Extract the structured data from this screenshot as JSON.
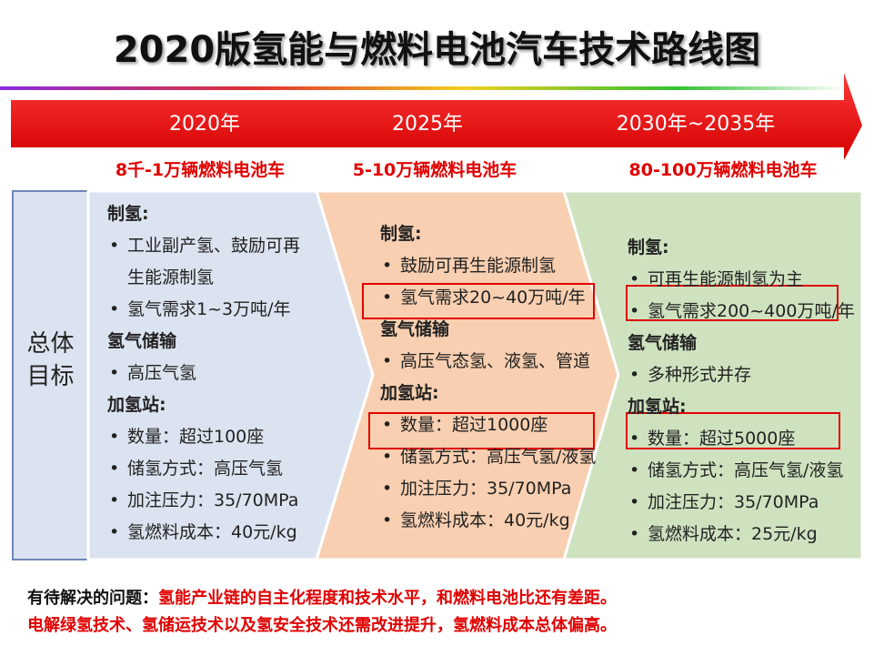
{
  "title": "2020版氢能与燃料电池汽车技术路线图",
  "timeline": [
    "2020年",
    "2025年",
    "2030年~2035年"
  ],
  "targets": [
    "8千-1万辆燃料电池车",
    "5-10万辆燃料电池车",
    "80-100万辆燃料电池车"
  ],
  "row_label": [
    "总体",
    "目标"
  ],
  "columns": [
    {
      "sections": [
        {
          "heading": "制氢:",
          "items": [
            "工业副产氢、鼓励可再生能源制氢",
            "氢气需求1~3万吨/年"
          ]
        },
        {
          "heading": "氢气储输",
          "items": [
            "高压气氢"
          ]
        },
        {
          "heading": "加氢站:",
          "items": [
            "数量：超过100座",
            "储氢方式：高压气氢",
            "加注压力：35/70MPa",
            "氢燃料成本：40元/kg"
          ]
        }
      ]
    },
    {
      "sections": [
        {
          "heading": "制氢:",
          "items": [
            "鼓励可再生能源制氢",
            "氢气需求20~40万吨/年"
          ]
        },
        {
          "heading": "氢气储输",
          "items": [
            "高压气态氢、液氢、管道"
          ]
        },
        {
          "heading": "加氢站:",
          "items": [
            "数量：超过1000座",
            "储氢方式：高压气氢/液氢",
            "加注压力：35/70MPa",
            "氢燃料成本：40元/kg"
          ]
        }
      ]
    },
    {
      "sections": [
        {
          "heading": "制氢:",
          "items": [
            "可再生能源制氢为主",
            "氢气需求200~400万吨/年"
          ]
        },
        {
          "heading": "氢气储输",
          "items": [
            "多种形式并存"
          ]
        },
        {
          "heading": "加氢站:",
          "items": [
            "数量：超过5000座",
            "储氢方式：高压气氢/液氢",
            "加注压力：35/70MPa",
            "氢燃料成本：25元/kg"
          ]
        }
      ]
    }
  ],
  "problems": {
    "label": "有待解决的问题：",
    "lines": [
      "氢能产业链的自主化程度和技术水平，和燃料电池比还有差距。",
      "电解绿氢技术、氢储运技术以及氢安全技术还需改进提升，氢燃料成本总体偏高。"
    ]
  }
}
